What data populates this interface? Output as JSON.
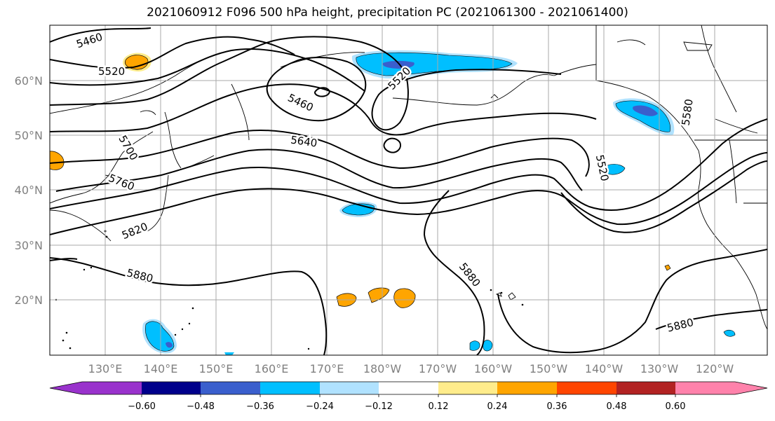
{
  "title": "2021060912 F096 500 hPa height, precipitation PC (2021061300 - 2021061400)",
  "lat_labels": [
    "60°N",
    "50°N",
    "40°N",
    "30°N",
    "20°N"
  ],
  "lon_labels": [
    "130°E",
    "140°E",
    "150°E",
    "160°E",
    "170°E",
    "180°W",
    "170°W",
    "160°W",
    "150°W",
    "140°W",
    "130°W",
    "120°W"
  ],
  "contour_labels": [
    "5460",
    "5520",
    "5460",
    "5520",
    "5700",
    "5640",
    "5760",
    "5820",
    "5880",
    "5880",
    "5520",
    "5580",
    "5880"
  ],
  "colorbar": {
    "tick_labels": [
      "−0.60",
      "−0.48",
      "−0.36",
      "−0.24",
      "−0.12",
      "0.12",
      "0.24",
      "0.36",
      "0.48",
      "0.60"
    ],
    "colors": [
      "#9932cc",
      "#00008b",
      "#3a5fcd",
      "#00bfff",
      "#b0e2ff",
      "#ffffff",
      "#ffec8b",
      "#ffa500",
      "#ff4500",
      "#b22222",
      "#ff82ab"
    ]
  },
  "colors": {
    "contour": "#000000",
    "grid": "#a9a9a9",
    "coast": "#000000",
    "precip_positive": "#ffa500",
    "precip_positive_light": "#ffec8b",
    "precip_negative": "#00bfff",
    "precip_negative_light": "#b0e2ff",
    "precip_negative_strong": "#3a5fcd"
  }
}
